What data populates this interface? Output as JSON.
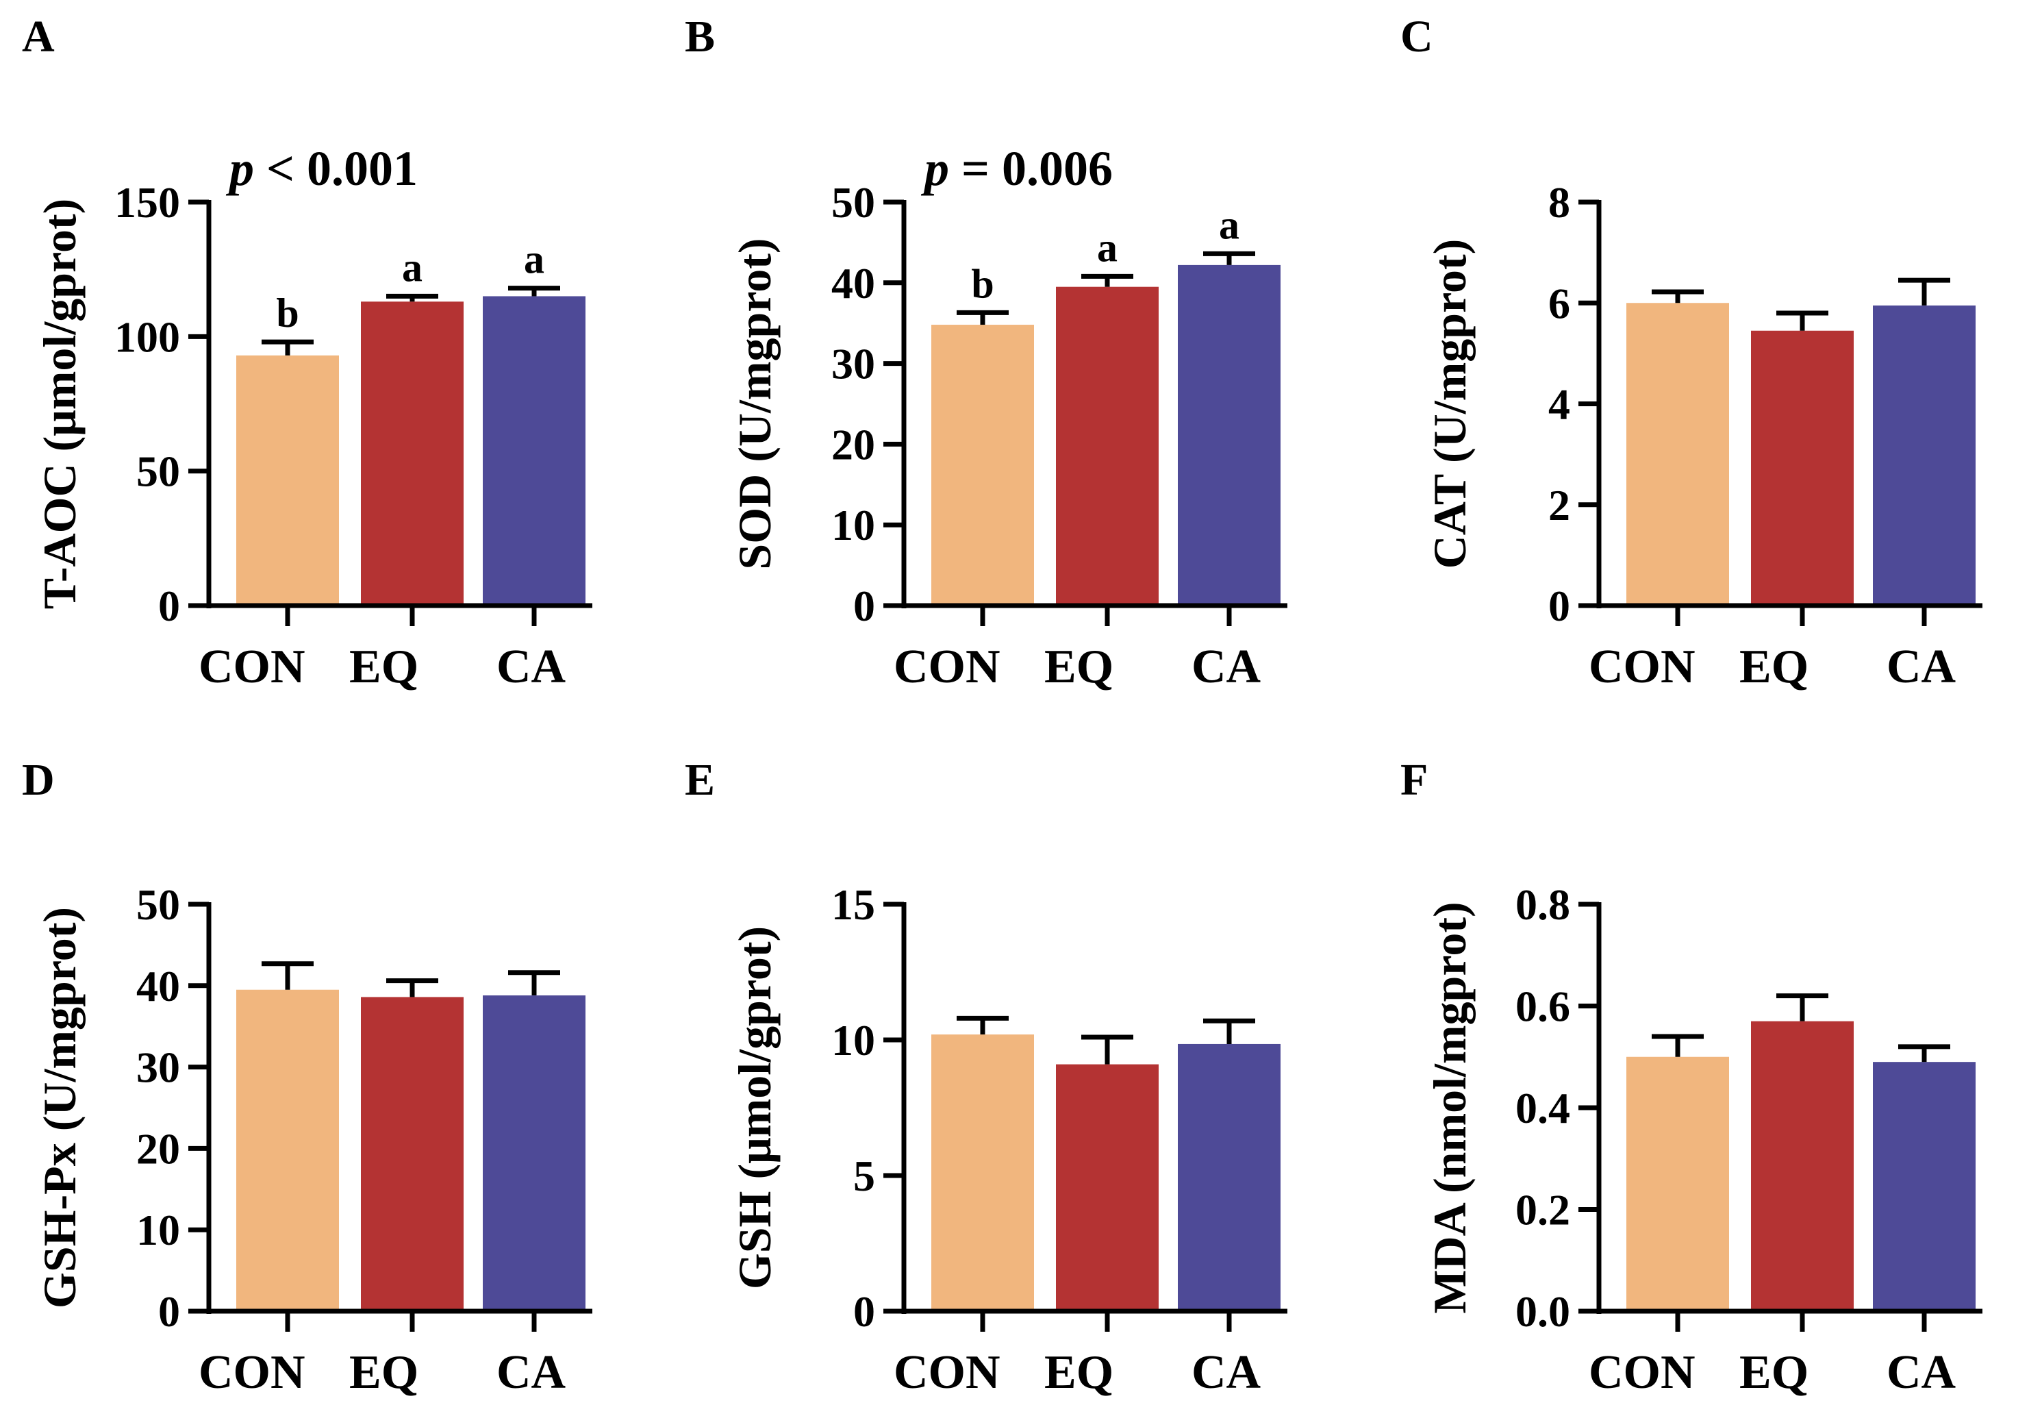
{
  "colors": {
    "CON": "#F1B67E",
    "EQ": "#B43333",
    "CA": "#4E4A97",
    "axis": "#000000"
  },
  "chart_data": [
    {
      "type": "bar",
      "panel": "A",
      "categories": [
        "CON",
        "EQ",
        "CA"
      ],
      "values": [
        93,
        113,
        115
      ],
      "errors": [
        5,
        2,
        3
      ],
      "sig_letters": [
        "b",
        "a",
        "a"
      ],
      "ylabel": "T-AOC (μmol/gprot)",
      "ylim": [
        0,
        150
      ],
      "yticks": [
        0,
        50,
        100,
        150
      ],
      "p_italic": "p",
      "p_rest": " < 0.001"
    },
    {
      "type": "bar",
      "panel": "B",
      "categories": [
        "CON",
        "EQ",
        "CA"
      ],
      "values": [
        34.8,
        39.5,
        42.2
      ],
      "errors": [
        1.5,
        1.3,
        1.4
      ],
      "sig_letters": [
        "b",
        "a",
        "a"
      ],
      "ylabel": "SOD (U/mgprot)",
      "ylim": [
        0,
        50
      ],
      "yticks": [
        0,
        10,
        20,
        30,
        40,
        50
      ],
      "p_italic": "p",
      "p_rest": " = 0.006"
    },
    {
      "type": "bar",
      "panel": "C",
      "categories": [
        "CON",
        "EQ",
        "CA"
      ],
      "values": [
        6.0,
        5.45,
        5.95
      ],
      "errors": [
        0.22,
        0.35,
        0.5
      ],
      "sig_letters": [],
      "ylabel": "CAT (U/mgprot)",
      "ylim": [
        0,
        8
      ],
      "yticks": [
        0,
        2,
        4,
        6,
        8
      ],
      "p_italic": "",
      "p_rest": ""
    },
    {
      "type": "bar",
      "panel": "D",
      "categories": [
        "CON",
        "EQ",
        "CA"
      ],
      "values": [
        39.5,
        38.6,
        38.8
      ],
      "errors": [
        3.2,
        2.0,
        2.8
      ],
      "sig_letters": [],
      "ylabel": "GSH-Px (U/mgprot)",
      "ylim": [
        0,
        50
      ],
      "yticks": [
        0,
        10,
        20,
        30,
        40,
        50
      ],
      "p_italic": "",
      "p_rest": ""
    },
    {
      "type": "bar",
      "panel": "E",
      "categories": [
        "CON",
        "EQ",
        "CA"
      ],
      "values": [
        10.2,
        9.1,
        9.85
      ],
      "errors": [
        0.6,
        1.0,
        0.85
      ],
      "sig_letters": [],
      "ylabel": "GSH (μmol/gprot)",
      "ylim": [
        0,
        15
      ],
      "yticks": [
        0,
        5,
        10,
        15
      ],
      "p_italic": "",
      "p_rest": ""
    },
    {
      "type": "bar",
      "panel": "F",
      "categories": [
        "CON",
        "EQ",
        "CA"
      ],
      "values": [
        0.5,
        0.57,
        0.49
      ],
      "errors": [
        0.04,
        0.05,
        0.03
      ],
      "sig_letters": [],
      "ylabel": "MDA (nmol/mgprot)",
      "ylim": [
        0,
        0.8
      ],
      "yticks": [
        "0.0",
        "0.2",
        "0.4",
        "0.6",
        "0.8"
      ],
      "p_italic": "",
      "p_rest": ""
    }
  ]
}
